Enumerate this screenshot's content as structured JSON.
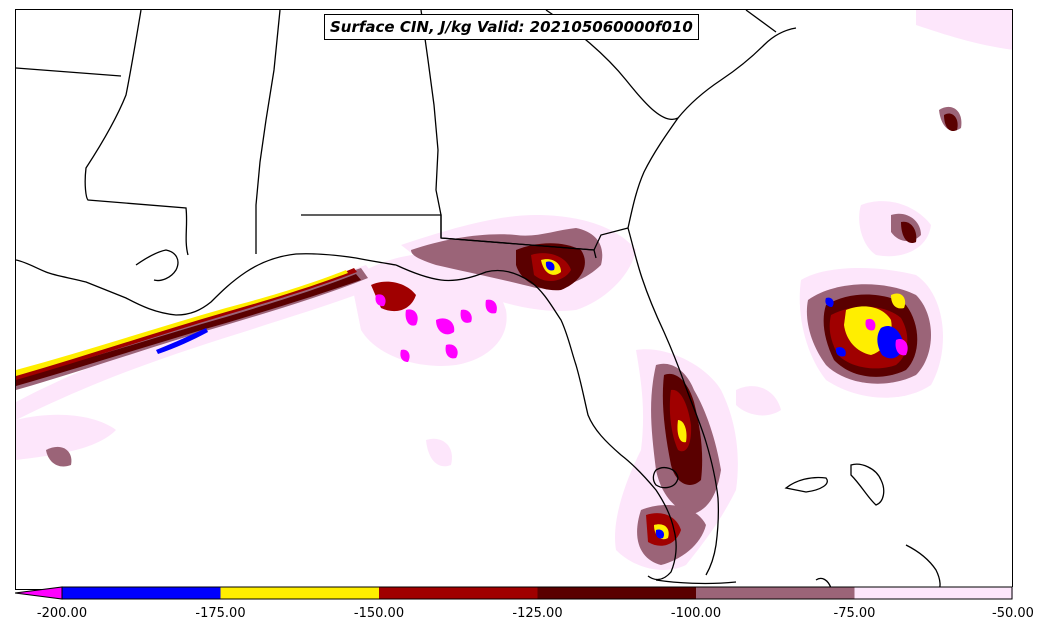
{
  "title": "Surface CIN, J/kg Valid: 202105060000f010",
  "colorbar": {
    "extend": "min",
    "arrow_color": "#ff00ff",
    "bins": [
      {
        "from": -200,
        "to": -175,
        "color": "#0000ff"
      },
      {
        "from": -175,
        "to": -150,
        "color": "#ffee00"
      },
      {
        "from": -150,
        "to": -125,
        "color": "#a00000"
      },
      {
        "from": -125,
        "to": -100,
        "color": "#5a0000"
      },
      {
        "from": -100,
        "to": -75,
        "color": "#9b6478"
      },
      {
        "from": -75,
        "to": -50,
        "color": "#fde6fb"
      }
    ],
    "tick_labels": [
      "-200.00",
      "-175.00",
      "-150.00",
      "-125.00",
      "-100.00",
      "-75.00",
      "-50.00"
    ]
  },
  "map": {
    "region": "Southeastern United States, Florida and Gulf of Mexico",
    "boundaries": [
      "coastlines",
      "state borders"
    ],
    "boundary_color": "#000000"
  }
}
